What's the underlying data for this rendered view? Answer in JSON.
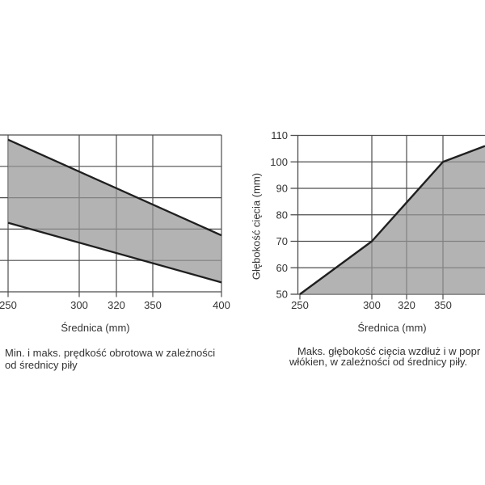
{
  "canvas": {
    "background": "#ffffff"
  },
  "colors": {
    "grid_line": "#4d4d4d",
    "data_line": "#1f1f1f",
    "band_fill_rgba": "rgba(150,150,150,0.72)",
    "band_fill_hex_apparent": "#b3b3b3",
    "text": "#333333"
  },
  "left_chart": {
    "x_axis_title": "Średnica (mm)",
    "caption_line1": "Min. i maks. prędkość obrotowa w zależności",
    "caption_line2": "od średnicy piły"
  },
  "right_chart": {
    "x_axis_title": "Średnica (mm)",
    "y_axis_title": "Głębokość cięcia (mm)",
    "caption_line1": "Maks. głębokość cięcia wzdłuż i w popr",
    "caption_line2": "włókien, w zależności od średnicy piły."
  },
  "chart_data": [
    {
      "type": "area",
      "title": "Min. i maks. prędkość obrotowa w zależności od średnicy piły",
      "xlabel": "Średnica (mm)",
      "ylabel": "",
      "x_ticks": [
        "250",
        "300",
        "320",
        "350",
        "400"
      ],
      "x_range_mm": [
        250,
        400
      ],
      "grid": true,
      "y_axis_labels_visible": false,
      "note": "Y-axis scale (rotational speed) is cropped off the left edge of the screenshot; gray band fills the area between the max and min speed lines, both straight and falling with diameter.",
      "series": [
        {
          "name": "maks. prędkość obrotowa",
          "x_mm": [
            250,
            400
          ],
          "y_frac_of_plot_height": [
            0.97,
            0.36
          ]
        },
        {
          "name": "min. prędkość obrotowa",
          "x_mm": [
            250,
            400
          ],
          "y_frac_of_plot_height": [
            0.44,
            0.06
          ]
        }
      ]
    },
    {
      "type": "area",
      "title": "Maks. głębokość cięcia wzdłuż i w popr… włókien, w zależności od średnicy piły.",
      "xlabel": "Średnica (mm)",
      "ylabel": "Głębokość cięcia (mm)",
      "x_ticks": [
        "250",
        "300",
        "320",
        "350"
      ],
      "y_ticks": [
        110,
        100,
        90,
        80,
        70,
        60,
        50
      ],
      "ylim": [
        50,
        110
      ],
      "grid": true,
      "points": [
        {
          "x_mm": 250,
          "depth_mm": 50
        },
        {
          "x_mm": 300,
          "depth_mm": 70
        },
        {
          "x_mm": 350,
          "depth_mm": 100
        }
      ],
      "clip_edge_depth_mm": 106,
      "note": "Chart is cropped at the right edge of the image (the 400 mm tick is off-screen); the curve keeps rising past 350 mm and reads ~106 mm at the image edge. Gray area fills under the curve."
    }
  ]
}
